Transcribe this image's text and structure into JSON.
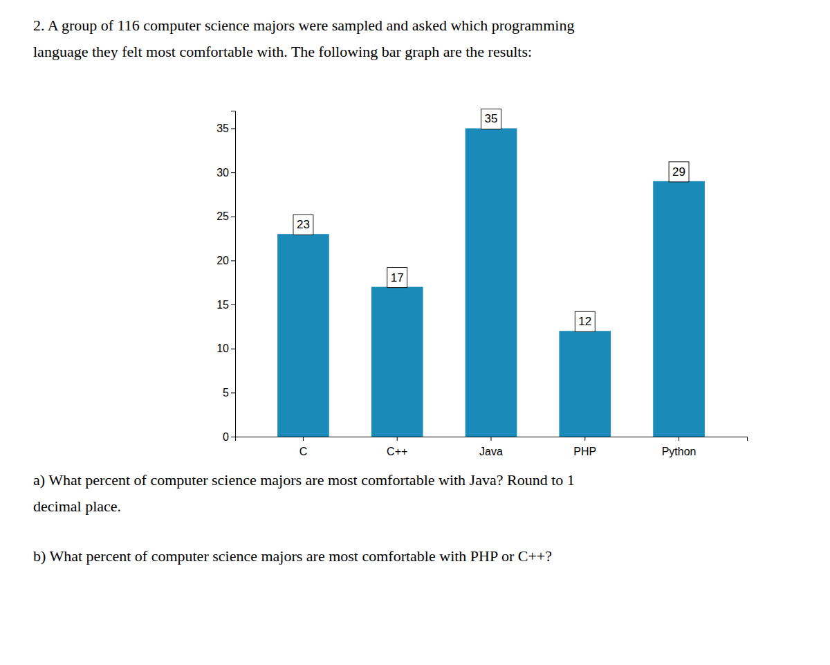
{
  "chart_data": {
    "type": "bar",
    "title": [
      "2.  A group of 116 computer science majors were sampled and asked which programming",
      "language they felt most comfortable with. The following bar graph are the results:"
    ],
    "annotations": [
      "a) What percent of computer science majors are most comfortable with Java? Round to 1",
      "decimal place.",
      "b) What percent of computer science majors are most comfortable with PHP or C++?"
    ],
    "categories": [
      "C",
      "C++",
      "Java",
      "PHP",
      "Python"
    ],
    "values": [
      23,
      17,
      35,
      12,
      29
    ],
    "color": "#1a8ab8",
    "ylim": [
      0,
      37
    ],
    "yticks": [
      0,
      5,
      10,
      15,
      20,
      25,
      30,
      35
    ],
    "grid": false,
    "data_labels": true
  }
}
